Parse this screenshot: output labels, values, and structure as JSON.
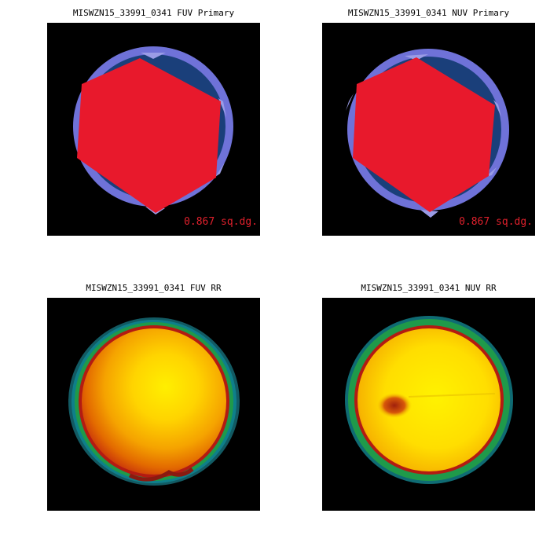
{
  "panels": [
    {
      "title": "MISWZN15_33991_0341 FUV Primary",
      "area": "0.867 sq.dg."
    },
    {
      "title": "MISWZN15_33991_0341 NUV Primary",
      "area": "0.867 sq.dg."
    },
    {
      "title": "MISWZN15_33991_0341 FUV RR"
    },
    {
      "title": "MISWZN15_33991_0341 NUV RR"
    }
  ],
  "colors": {
    "background": "#000000",
    "coverage_dark": "#1a3f7a",
    "coverage_light": "#6f72d8",
    "primary_hexagon": "#e8192c",
    "area_text": "#e0202c",
    "rr_ring_outer": "#0e7f8a",
    "rr_ring_green": "#1f9a4a",
    "rr_ring_red": "#b31b12",
    "rr_center": "#ffee00"
  }
}
